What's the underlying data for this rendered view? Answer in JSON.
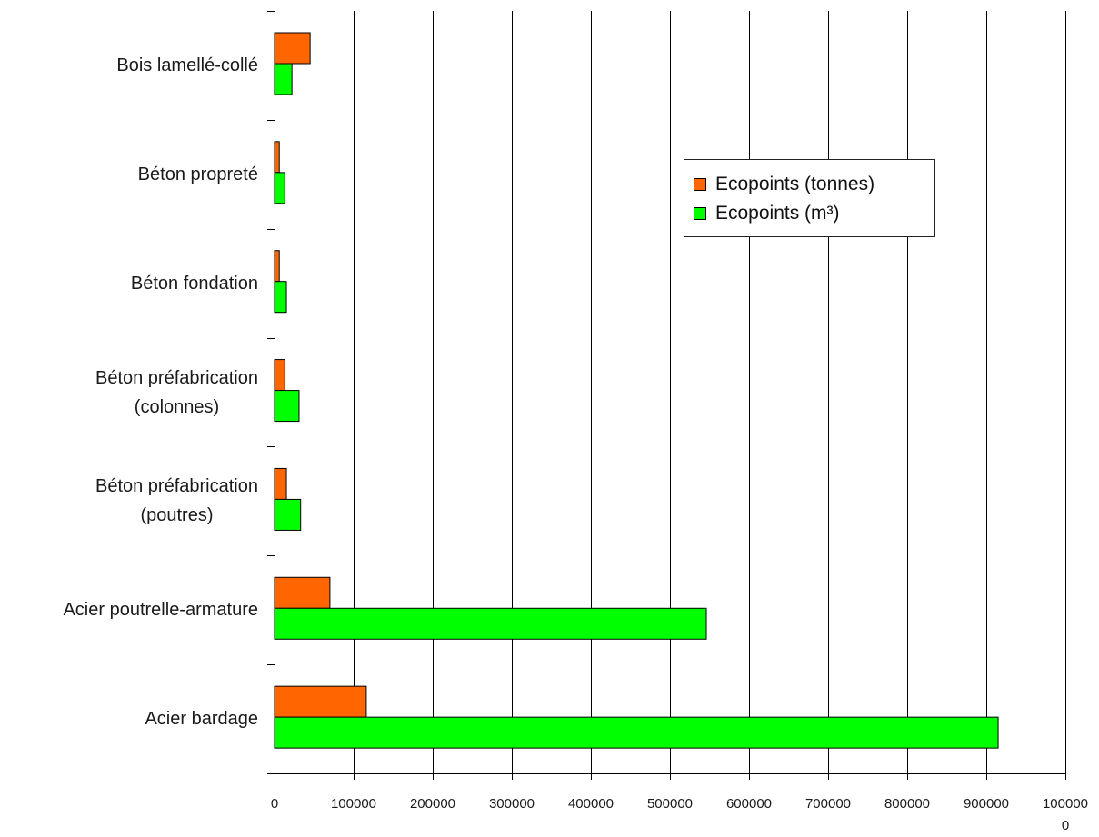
{
  "chart_data": {
    "type": "bar",
    "orientation": "horizontal",
    "categories": [
      "Bois lamellé-collé",
      "Béton propreté",
      "Béton fondation",
      "Béton préfabrication\n(colonnes)",
      "Béton préfabrication\n(poutres)",
      "Acier poutrelle-armature",
      "Acier bardage"
    ],
    "series": [
      {
        "name": "Ecopoints (tonnes)",
        "color": "#ff6600",
        "values": [
          45000,
          6000,
          6000,
          13000,
          15000,
          70000,
          116000
        ]
      },
      {
        "name": "Ecopoints (m³)",
        "color": "#00ff00",
        "values": [
          22000,
          13000,
          15000,
          31000,
          33000,
          546000,
          915000
        ]
      }
    ],
    "xlim": [
      0,
      1000000
    ],
    "xticks": [
      "0",
      "100000",
      "200000",
      "300000",
      "400000",
      "500000",
      "600000",
      "700000",
      "800000",
      "900000",
      "100000\n0"
    ],
    "grid": "vertical",
    "legend_position": "top-right"
  }
}
